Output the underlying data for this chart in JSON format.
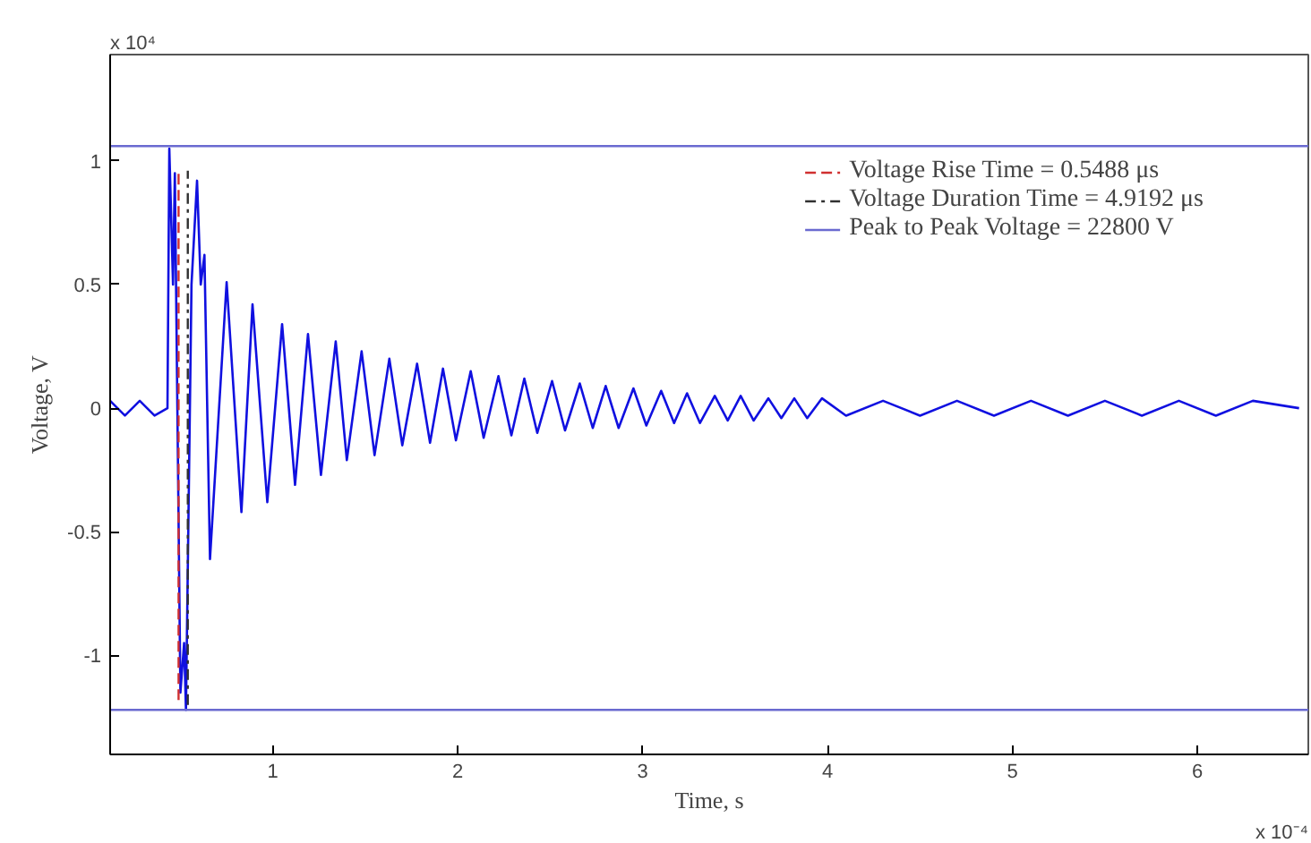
{
  "chart_data": {
    "type": "line",
    "xlabel": "Time, s",
    "ylabel": "Voltage, V",
    "annotations": [
      "x 10⁴",
      "x 10⁻⁴"
    ],
    "xlim": [
      0.12,
      6.6
    ],
    "ylim": [
      -1.4,
      1.43
    ],
    "xticks": [
      1,
      2,
      3,
      4,
      5,
      6
    ],
    "yticks": [
      -1,
      -0.5,
      0,
      0.5,
      1
    ],
    "legend": "top right",
    "grid": false,
    "series": [
      {
        "color": "#1010e0",
        "line_style": "solid",
        "x": [
          0.12,
          0.2,
          0.28,
          0.36,
          0.43,
          0.44,
          0.46,
          0.47,
          0.5,
          0.52,
          0.53,
          0.56,
          0.59,
          0.61,
          0.63,
          0.66,
          0.75,
          0.83,
          0.89,
          0.97,
          1.05,
          1.12,
          1.19,
          1.26,
          1.34,
          1.4,
          1.48,
          1.55,
          1.63,
          1.7,
          1.78,
          1.85,
          1.92,
          1.99,
          2.07,
          2.14,
          2.22,
          2.29,
          2.36,
          2.43,
          2.51,
          2.58,
          2.66,
          2.73,
          2.8,
          2.87,
          2.95,
          3.02,
          3.1,
          3.17,
          3.24,
          3.31,
          3.39,
          3.46,
          3.53,
          3.6,
          3.68,
          3.75,
          3.82,
          3.89,
          3.97,
          4.1,
          4.3,
          4.5,
          4.7,
          4.9,
          5.1,
          5.3,
          5.5,
          5.7,
          5.9,
          6.1,
          6.3,
          6.55
        ],
        "values": [
          0.03,
          -0.03,
          0.03,
          -0.03,
          0.0,
          1.05,
          0.5,
          0.95,
          -1.15,
          -0.95,
          -1.22,
          0.5,
          0.92,
          0.5,
          0.62,
          -0.61,
          0.51,
          -0.42,
          0.42,
          -0.38,
          0.34,
          -0.31,
          0.3,
          -0.27,
          0.27,
          -0.21,
          0.23,
          -0.19,
          0.2,
          -0.15,
          0.18,
          -0.14,
          0.16,
          -0.13,
          0.15,
          -0.12,
          0.13,
          -0.11,
          0.12,
          -0.1,
          0.11,
          -0.09,
          0.1,
          -0.08,
          0.09,
          -0.08,
          0.08,
          -0.07,
          0.07,
          -0.06,
          0.06,
          -0.06,
          0.05,
          -0.05,
          0.05,
          -0.05,
          0.04,
          -0.04,
          0.04,
          -0.04,
          0.04,
          -0.03,
          0.03,
          -0.03,
          0.03,
          -0.03,
          0.03,
          -0.03,
          0.03,
          -0.03,
          0.03,
          -0.03,
          0.03,
          0.0
        ]
      },
      {
        "name": "Voltage Rise Time = 0.5488 μs",
        "color": "#d03030",
        "line_style": "dashed",
        "x": [
          0.49,
          0.49
        ],
        "values": [
          -1.18,
          0.95
        ]
      },
      {
        "name": "Voltage Duration Time = 4.9192 μs",
        "color": "#303030",
        "line_style": "dashdot",
        "x": [
          0.54,
          0.54
        ],
        "values": [
          -1.2,
          0.96
        ]
      },
      {
        "name": "Peak to Peak Voltage = 22800 V",
        "color": "#6a6ad0",
        "line_style": "solid",
        "x": [
          0.12,
          6.6
        ],
        "values": [
          1.06,
          1.06
        ]
      },
      {
        "color": "#6a6ad0",
        "line_style": "solid",
        "x": [
          0.12,
          6.6
        ],
        "values": [
          -1.22,
          -1.22
        ]
      }
    ]
  }
}
